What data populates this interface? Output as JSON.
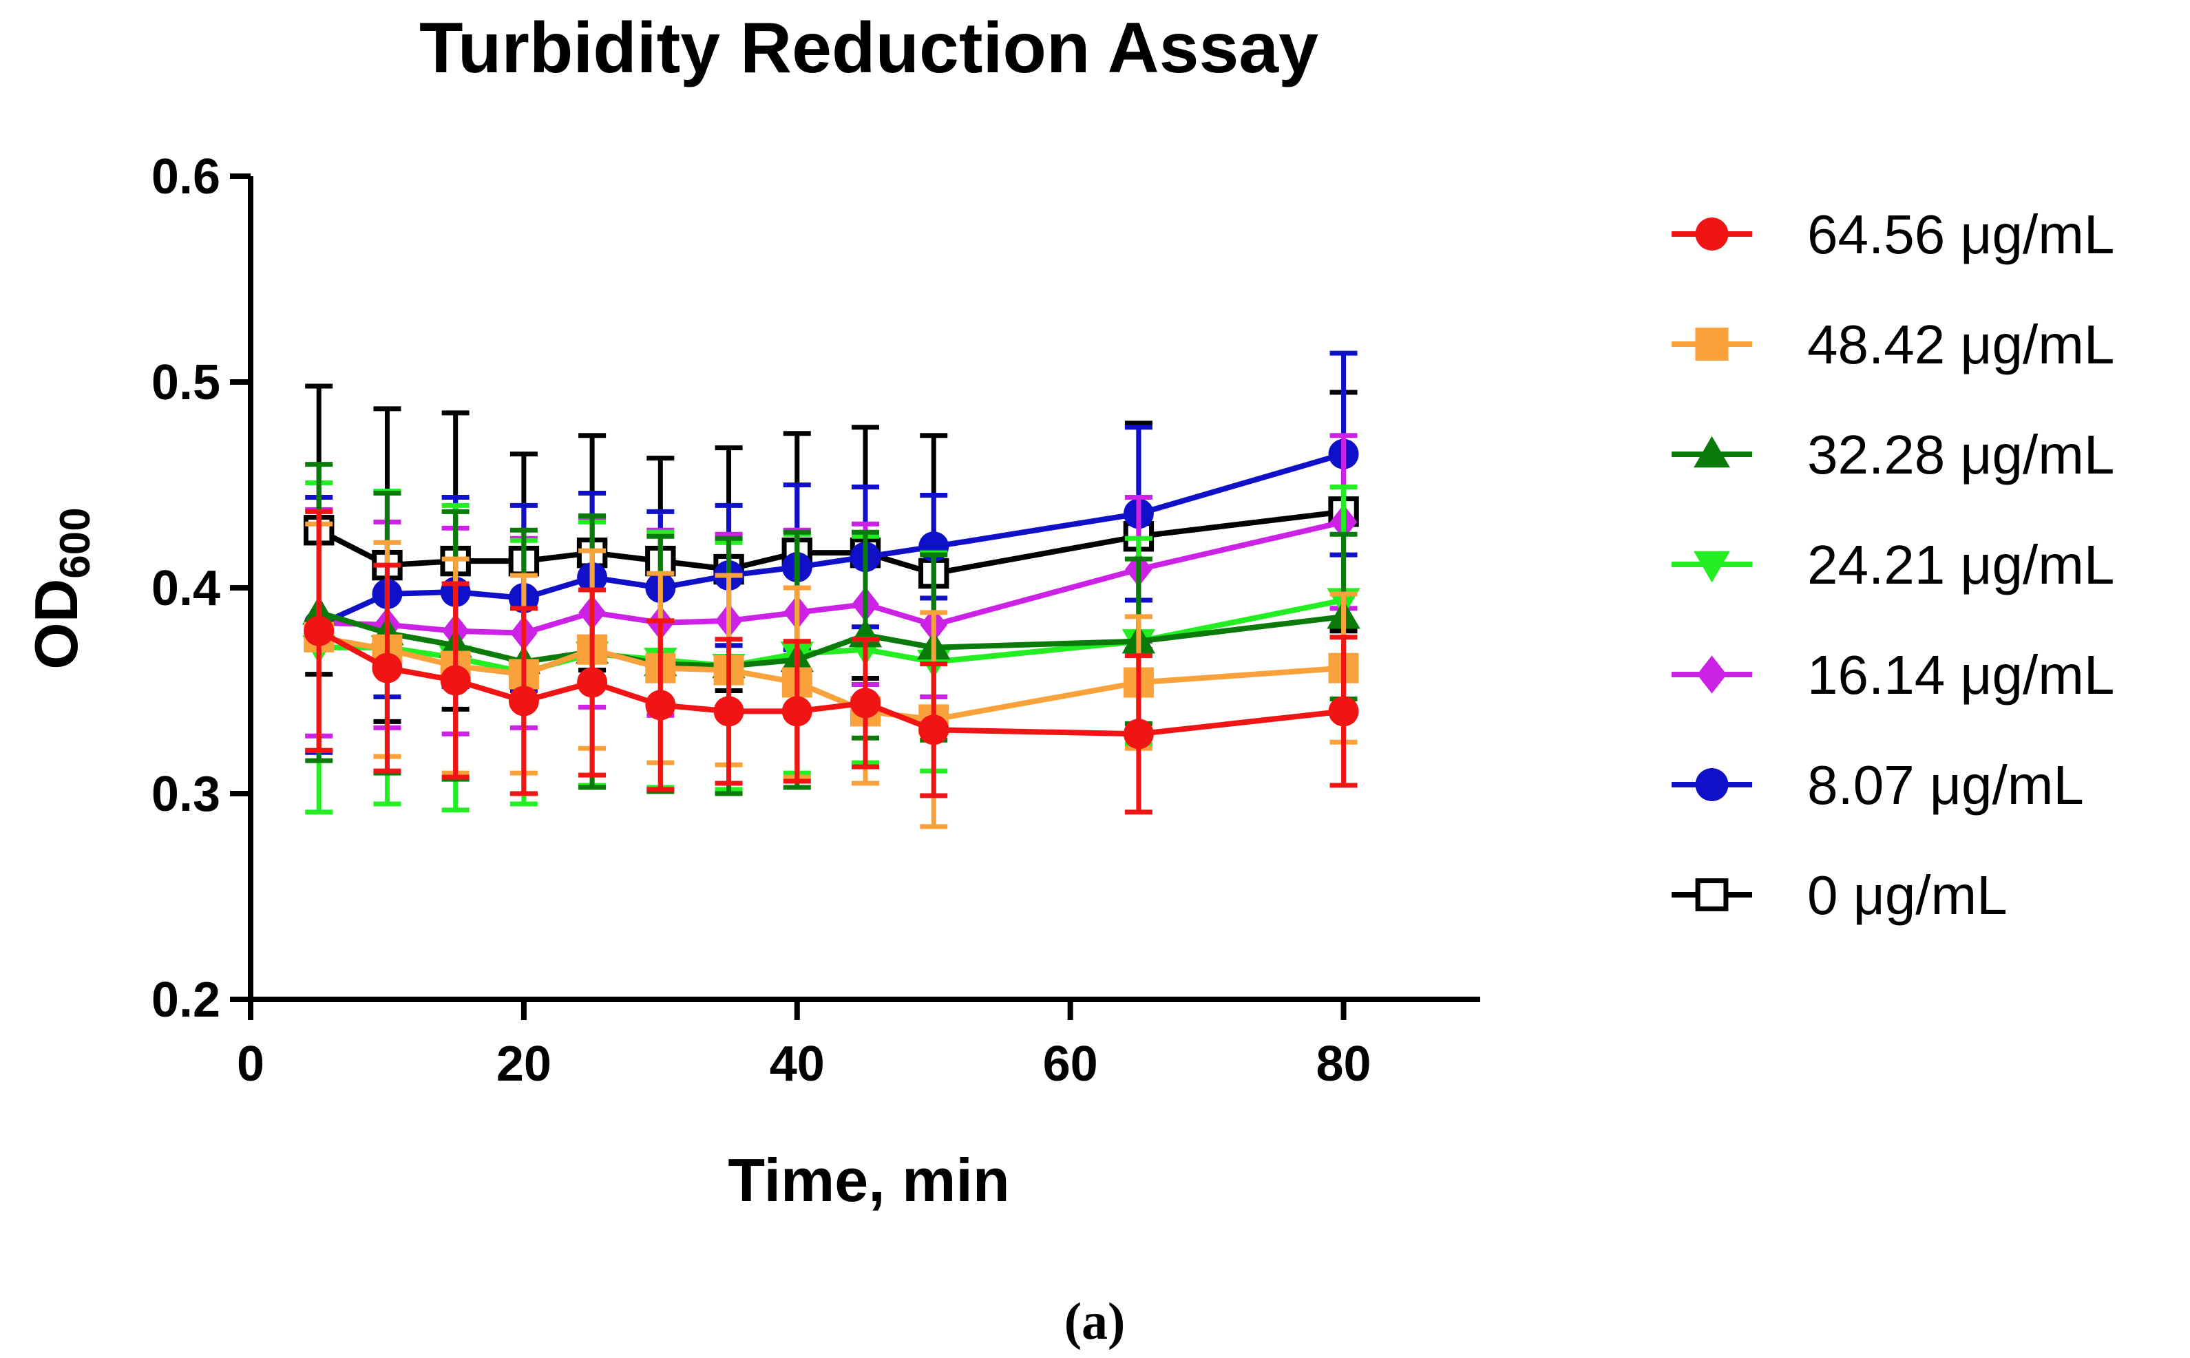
{
  "chart_data": {
    "type": "line",
    "title": "Turbidity Reduction Assay",
    "xlabel": "Time, min",
    "ylabel": "OD",
    "ylabel_subscript": "600",
    "xlim": [
      0,
      90
    ],
    "ylim": [
      0.2,
      0.6
    ],
    "x_ticks": [
      0,
      20,
      40,
      60,
      80
    ],
    "x_tick_labels": [
      "0",
      "20",
      "40",
      "60",
      "80"
    ],
    "y_ticks": [
      0.2,
      0.3,
      0.4,
      0.5,
      0.6
    ],
    "y_tick_labels": [
      "0.2",
      "0.3",
      "0.4",
      "0.5",
      "0.6"
    ],
    "grid": false,
    "legend_position": "right",
    "x": [
      5,
      10,
      15,
      20,
      25,
      30,
      35,
      40,
      45,
      50,
      65,
      80
    ],
    "series": [
      {
        "name": "0 μg/mL",
        "color": "#000000",
        "marker": "square-open",
        "values": [
          0.428,
          0.411,
          0.413,
          0.413,
          0.417,
          0.413,
          0.409,
          0.417,
          0.417,
          0.407,
          0.425,
          0.437
        ],
        "errors": [
          0.07,
          0.076,
          0.072,
          0.052,
          0.057,
          0.05,
          0.059,
          0.058,
          0.061,
          0.067,
          0.055,
          0.058
        ]
      },
      {
        "name": "8.07 μg/mL",
        "color": "#1010c8",
        "marker": "circle",
        "values": [
          0.382,
          0.397,
          0.398,
          0.395,
          0.405,
          0.4,
          0.406,
          0.41,
          0.415,
          0.42,
          0.436,
          0.465
        ],
        "errors": [
          0.062,
          0.05,
          0.046,
          0.045,
          0.041,
          0.037,
          0.034,
          0.04,
          0.034,
          0.025,
          0.042,
          0.049
        ]
      },
      {
        "name": "16.14 μg/mL",
        "color": "#cc22e6",
        "marker": "diamond",
        "values": [
          0.383,
          0.382,
          0.379,
          0.378,
          0.388,
          0.383,
          0.384,
          0.388,
          0.392,
          0.382,
          0.409,
          0.432
        ],
        "errors": [
          0.055,
          0.05,
          0.05,
          0.046,
          0.046,
          0.045,
          0.042,
          0.04,
          0.039,
          0.035,
          0.035,
          0.042
        ]
      },
      {
        "name": "24.21 μg/mL",
        "color": "#22ee22",
        "marker": "triangle-down",
        "values": [
          0.371,
          0.371,
          0.366,
          0.359,
          0.368,
          0.365,
          0.362,
          0.368,
          0.37,
          0.364,
          0.374,
          0.394
        ],
        "errors": [
          0.08,
          0.076,
          0.074,
          0.064,
          0.064,
          0.062,
          0.06,
          0.058,
          0.055,
          0.053,
          0.05,
          0.055
        ]
      },
      {
        "name": "32.28 μg/mL",
        "color": "#0a7a0a",
        "marker": "triangle-up",
        "values": [
          0.388,
          0.378,
          0.372,
          0.364,
          0.369,
          0.363,
          0.362,
          0.365,
          0.377,
          0.371,
          0.374,
          0.386
        ],
        "errors": [
          0.072,
          0.068,
          0.065,
          0.064,
          0.066,
          0.062,
          0.062,
          0.062,
          0.05,
          0.045,
          0.04,
          0.04
        ]
      },
      {
        "name": "48.42 μg/mL",
        "color": "#f9a13b",
        "marker": "square",
        "values": [
          0.376,
          0.37,
          0.362,
          0.358,
          0.37,
          0.361,
          0.36,
          0.354,
          0.34,
          0.336,
          0.354,
          0.361
        ],
        "errors": [
          0.055,
          0.052,
          0.052,
          0.048,
          0.048,
          0.046,
          0.046,
          0.046,
          0.035,
          0.052,
          0.032,
          0.036
        ]
      },
      {
        "name": "64.56 μg/mL",
        "color": "#f01414",
        "marker": "circle",
        "values": [
          0.379,
          0.361,
          0.355,
          0.345,
          0.354,
          0.343,
          0.34,
          0.34,
          0.344,
          0.331,
          0.329,
          0.34
        ],
        "errors": [
          0.058,
          0.05,
          0.047,
          0.045,
          0.045,
          0.041,
          0.035,
          0.034,
          0.031,
          0.032,
          0.038,
          0.036
        ]
      }
    ],
    "legend_order": [
      "64.56 μg/mL",
      "48.42 μg/mL",
      "32.28 μg/mL",
      "24.21 μg/mL",
      "16.14 μg/mL",
      "8.07 μg/mL",
      "0 μg/mL"
    ]
  },
  "caption": "(a)"
}
